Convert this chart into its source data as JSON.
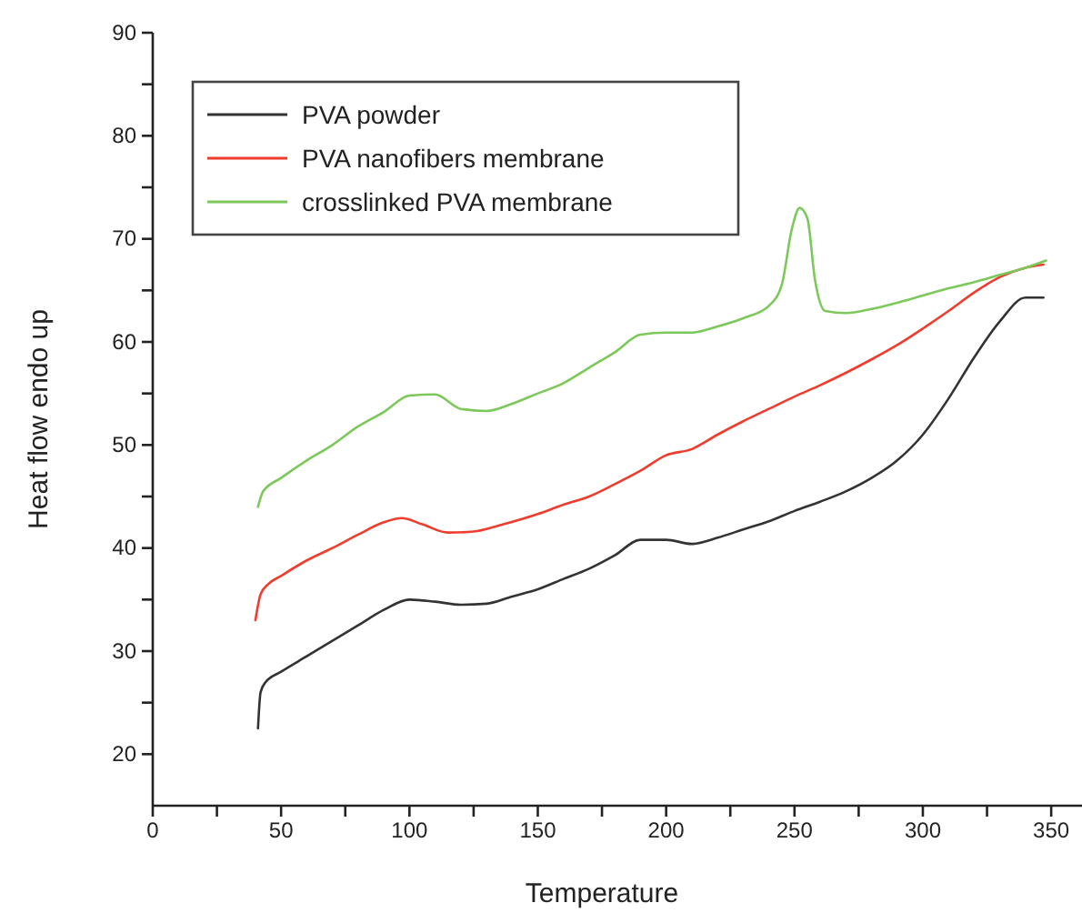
{
  "chart_data": {
    "type": "line",
    "xlabel": "Temperature",
    "ylabel": "Heat flow endo up",
    "legend": "top left",
    "grid": false,
    "line_style": "solid",
    "marker": "none",
    "xlim": [
      0,
      362
    ],
    "ylim": [
      15,
      90
    ],
    "xticks": [
      0,
      {
        "value": 25,
        "label": null
      },
      50,
      {
        "value": 75,
        "label": null
      },
      100,
      {
        "value": 125,
        "label": null
      },
      150,
      {
        "value": 175,
        "label": null
      },
      200,
      {
        "value": 225,
        "label": null
      },
      250,
      {
        "value": 275,
        "label": null
      },
      300,
      {
        "value": 325,
        "label": null
      },
      350
    ],
    "yticks": [
      20,
      {
        "value": 25,
        "label": null
      },
      30,
      {
        "value": 35,
        "label": null
      },
      40,
      {
        "value": 45,
        "label": null
      },
      50,
      {
        "value": 55,
        "label": null
      },
      60,
      {
        "value": 65,
        "label": null
      },
      70,
      {
        "value": 75,
        "label": null
      },
      80,
      {
        "value": 85,
        "label": null
      },
      90
    ],
    "series": [
      {
        "name": "PVA powder",
        "color": "#333333",
        "x": [
          41,
          42,
          44,
          50,
          60,
          70,
          80,
          90,
          100,
          110,
          120,
          130,
          140,
          150,
          160,
          170,
          180,
          190,
          200,
          210,
          220,
          230,
          240,
          250,
          260,
          270,
          280,
          290,
          300,
          310,
          320,
          330,
          340,
          347
        ],
        "values": [
          22.5,
          26,
          27,
          28,
          29.5,
          31,
          32.5,
          34,
          35,
          34.8,
          34.5,
          34.6,
          35.3,
          36,
          37,
          38,
          39.3,
          40.8,
          40.8,
          40.4,
          41,
          41.8,
          42.6,
          43.6,
          44.5,
          45.5,
          46.8,
          48.5,
          51,
          54.5,
          58.5,
          62,
          64.3,
          64.3
        ]
      },
      {
        "name": "PVA nanofibers membrane",
        "color": "#f03c2c",
        "x": [
          40,
          42,
          45,
          50,
          60,
          70,
          80,
          90,
          97,
          105,
          115,
          125,
          135,
          150,
          160,
          170,
          180,
          190,
          200,
          210,
          220,
          230,
          240,
          250,
          260,
          270,
          280,
          290,
          300,
          310,
          320,
          330,
          340,
          347
        ],
        "values": [
          33,
          35.5,
          36.5,
          37.3,
          38.8,
          40,
          41.3,
          42.5,
          42.9,
          42.3,
          41.5,
          41.6,
          42.2,
          43.3,
          44.2,
          45,
          46.2,
          47.5,
          49,
          49.6,
          51,
          52.3,
          53.5,
          54.7,
          55.8,
          57,
          58.3,
          59.7,
          61.3,
          63,
          64.8,
          66.3,
          67.2,
          67.5
        ]
      },
      {
        "name": "crosslinked PVA membrane",
        "color": "#7cc85a",
        "x": [
          41,
          43,
          50,
          60,
          70,
          80,
          90,
          100,
          110,
          120,
          130,
          140,
          150,
          160,
          170,
          180,
          190,
          200,
          210,
          220,
          230,
          240,
          245,
          249,
          252,
          255,
          258,
          262,
          270,
          280,
          290,
          300,
          310,
          320,
          330,
          340,
          348
        ],
        "values": [
          44,
          45.5,
          46.8,
          48.5,
          50,
          51.8,
          53.2,
          54.8,
          54.9,
          53.5,
          53.3,
          54,
          55,
          56,
          57.5,
          59,
          60.7,
          60.9,
          60.9,
          61.5,
          62.3,
          63.5,
          65.5,
          71,
          73,
          72,
          66,
          63,
          62.8,
          63.2,
          63.8,
          64.5,
          65.2,
          65.8,
          66.5,
          67.2,
          67.9
        ]
      }
    ]
  }
}
